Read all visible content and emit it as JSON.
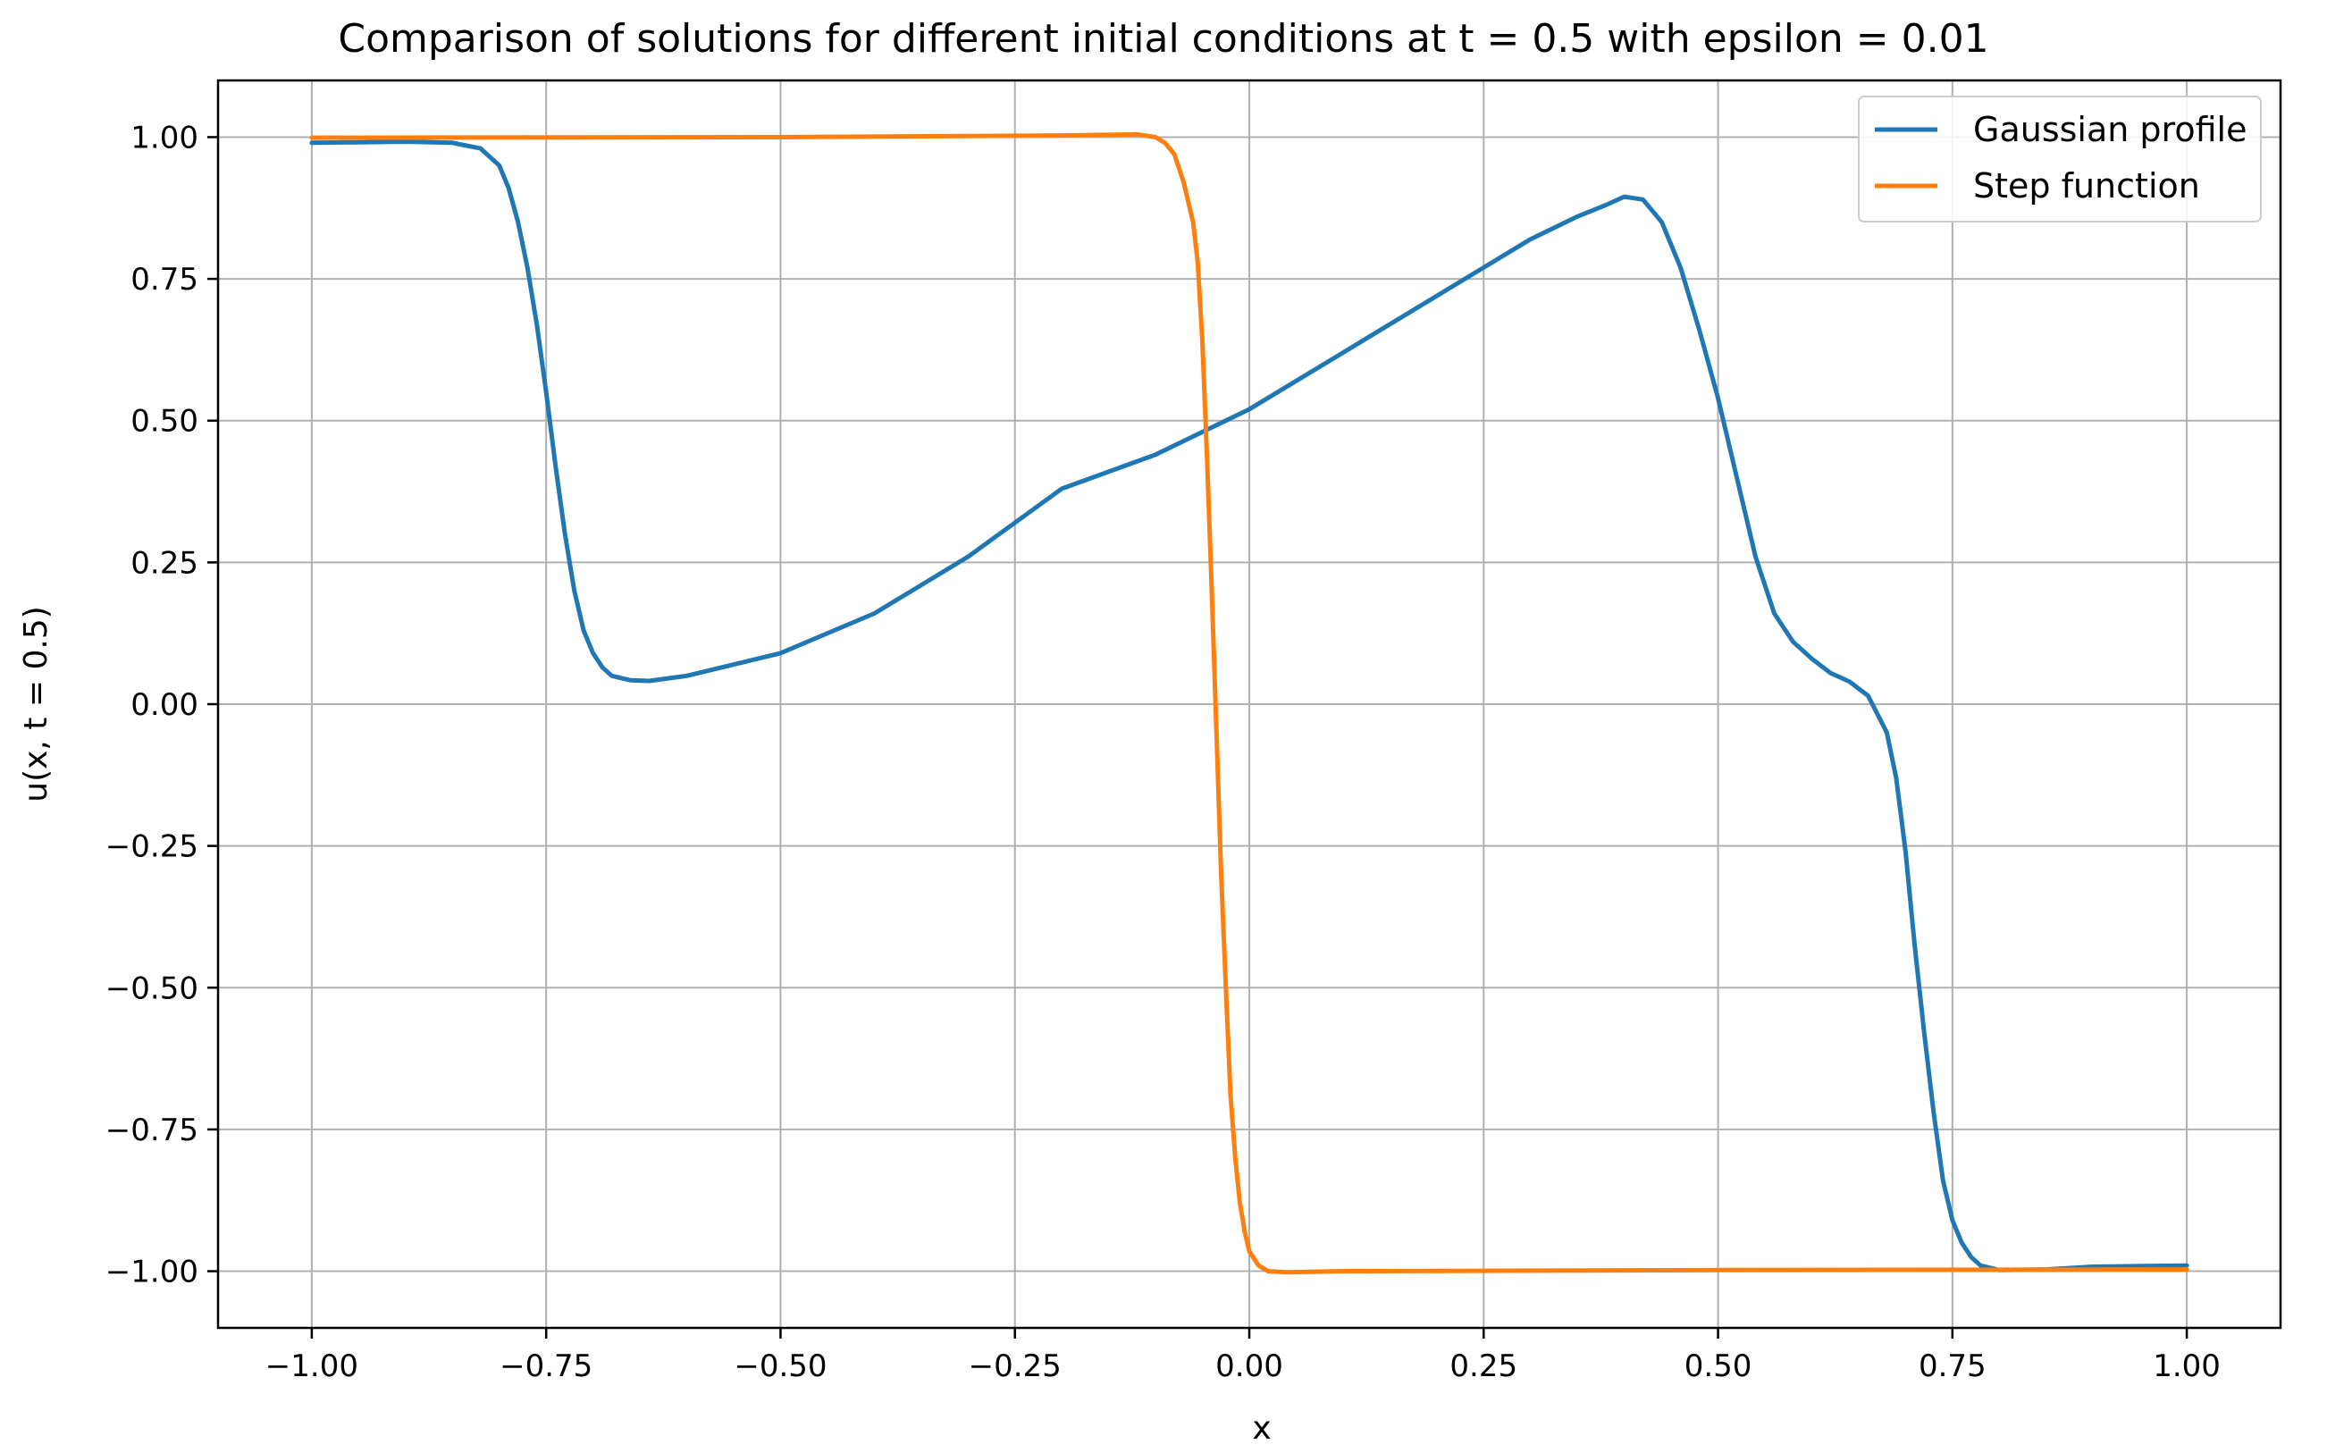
{
  "chart_data": {
    "type": "line",
    "title": "Comparison of solutions for different initial conditions at t = 0.5 with epsilon = 0.01",
    "xlabel": "x",
    "ylabel": "u(x, t = 0.5)",
    "xlim": [
      -1.1,
      1.1
    ],
    "ylim": [
      -1.1,
      1.1
    ],
    "grid": true,
    "legend_position": "top-right",
    "xticks": [
      -1.0,
      -0.75,
      -0.5,
      -0.25,
      0.0,
      0.25,
      0.5,
      0.75,
      1.0
    ],
    "xtick_labels": [
      "−1.00",
      "−0.75",
      "−0.50",
      "−0.25",
      "0.00",
      "0.25",
      "0.50",
      "0.75",
      "1.00"
    ],
    "yticks": [
      1.0,
      0.75,
      0.5,
      0.25,
      0.0,
      -0.25,
      -0.5,
      -0.75,
      -1.0
    ],
    "ytick_labels": [
      "1.00",
      "0.75",
      "0.50",
      "0.25",
      "0.00",
      "−0.25",
      "−0.50",
      "−0.75",
      "−1.00"
    ],
    "series": [
      {
        "name": "Gaussian profile",
        "color": "#1f77b4",
        "x": [
          -1.0,
          -0.95,
          -0.9,
          -0.85,
          -0.82,
          -0.8,
          -0.79,
          -0.78,
          -0.77,
          -0.76,
          -0.75,
          -0.74,
          -0.73,
          -0.72,
          -0.71,
          -0.7,
          -0.69,
          -0.68,
          -0.66,
          -0.64,
          -0.6,
          -0.5,
          -0.4,
          -0.3,
          -0.2,
          -0.1,
          0.0,
          0.1,
          0.2,
          0.3,
          0.35,
          0.38,
          0.4,
          0.42,
          0.44,
          0.46,
          0.48,
          0.5,
          0.52,
          0.54,
          0.56,
          0.58,
          0.6,
          0.62,
          0.64,
          0.66,
          0.68,
          0.69,
          0.7,
          0.71,
          0.72,
          0.73,
          0.74,
          0.75,
          0.76,
          0.77,
          0.78,
          0.8,
          0.85,
          0.9,
          1.0
        ],
        "y": [
          0.99,
          0.991,
          0.992,
          0.99,
          0.98,
          0.95,
          0.91,
          0.85,
          0.77,
          0.67,
          0.55,
          0.42,
          0.3,
          0.2,
          0.13,
          0.09,
          0.065,
          0.05,
          0.042,
          0.041,
          0.05,
          0.09,
          0.16,
          0.26,
          0.38,
          0.44,
          0.52,
          0.62,
          0.72,
          0.82,
          0.86,
          0.88,
          0.895,
          0.89,
          0.85,
          0.77,
          0.66,
          0.54,
          0.4,
          0.26,
          0.16,
          0.11,
          0.08,
          0.055,
          0.04,
          0.015,
          -0.05,
          -0.13,
          -0.26,
          -0.43,
          -0.58,
          -0.72,
          -0.84,
          -0.91,
          -0.95,
          -0.975,
          -0.99,
          -0.998,
          -0.997,
          -0.992,
          -0.99
        ]
      },
      {
        "name": "Step function",
        "color": "#ff7f0e",
        "x": [
          -1.0,
          -0.5,
          -0.2,
          -0.12,
          -0.1,
          -0.09,
          -0.08,
          -0.07,
          -0.06,
          -0.055,
          -0.05,
          -0.045,
          -0.04,
          -0.035,
          -0.03,
          -0.025,
          -0.02,
          -0.015,
          -0.01,
          -0.005,
          0.0,
          0.01,
          0.02,
          0.04,
          0.1,
          0.5,
          1.0
        ],
        "y": [
          0.999,
          1.0,
          1.003,
          1.005,
          1.0,
          0.99,
          0.97,
          0.92,
          0.85,
          0.78,
          0.64,
          0.43,
          0.2,
          -0.05,
          -0.3,
          -0.5,
          -0.69,
          -0.8,
          -0.88,
          -0.93,
          -0.965,
          -0.99,
          -1.0,
          -1.002,
          -1.0,
          -0.998,
          -0.997
        ]
      }
    ]
  }
}
